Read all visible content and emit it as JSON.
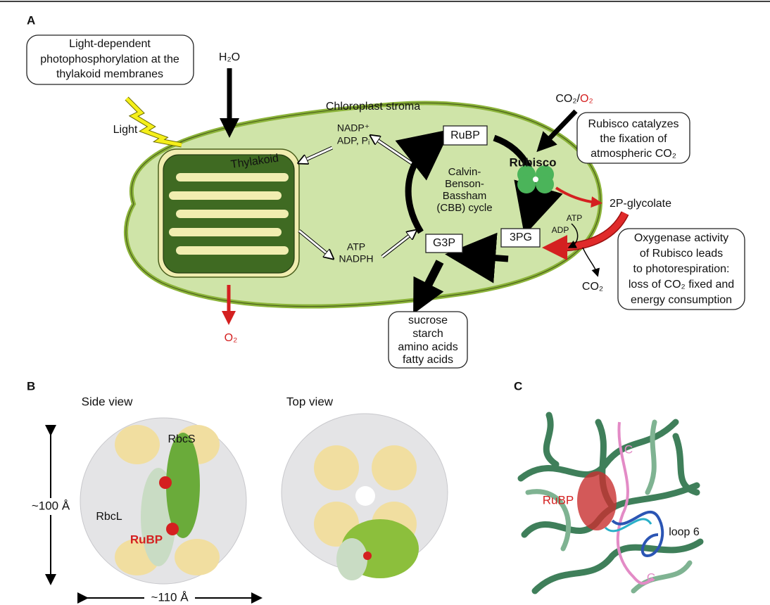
{
  "panel_a": {
    "label": "A",
    "light_box": [
      "Light-dependent",
      "photophosphorylation at the",
      "thylakoid membranes"
    ],
    "h2o": "H₂O",
    "light": "Light",
    "stroma": "Chloroplast stroma",
    "thylakoid": "Thylakoid",
    "nadp": [
      "NADP⁺",
      "ADP, Pᵢ"
    ],
    "atp_nadph": [
      "ATP",
      "NADPH"
    ],
    "rubp": "RuBP",
    "cycle": [
      "Calvin-",
      "Benson-",
      "Bassham",
      "(CBB) cycle"
    ],
    "rubisco": "Rubisco",
    "gas_in": {
      "co2": "CO₂/",
      "o2": "O₂"
    },
    "rubisco_box": [
      "Rubisco catalyzes",
      "the fixation of",
      "atmospheric CO₂"
    ],
    "glycolate": "2P-glycolate",
    "atp": "ATP",
    "adp": "ADP",
    "pg3": "3PG",
    "g3p": "G3P",
    "oxygenase_box": [
      "Oxygenase activity",
      "of Rubisco leads",
      "to photorespiration:",
      "loss of CO₂ fixed and",
      "energy consumption"
    ],
    "co2_out": "CO₂",
    "o2_out": "O₂",
    "products": [
      "sucrose",
      "starch",
      "amino acids",
      "fatty acids"
    ]
  },
  "panel_b": {
    "label": "B",
    "side_view": "Side view",
    "top_view": "Top view",
    "rbcs": "RbcS",
    "rbcl": "RbcL",
    "rubp": "RuBP",
    "height": "~100 Å",
    "width": "~110 Å"
  },
  "panel_c": {
    "label": "C",
    "rubp": "RuBP",
    "loop": "loop 6",
    "c_top": "C",
    "c_bottom": "C"
  }
}
